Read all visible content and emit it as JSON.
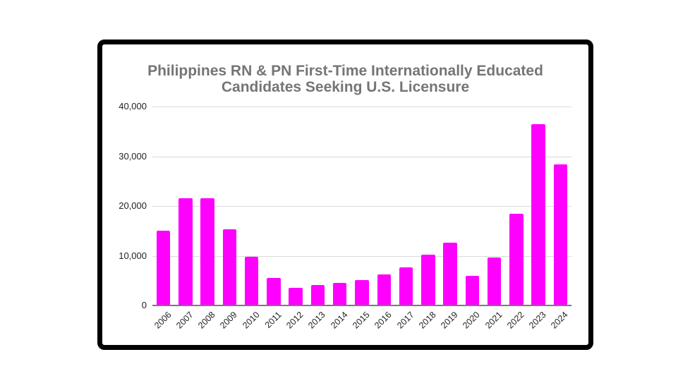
{
  "chart_data": {
    "type": "bar",
    "title": "Philippines RN & PN First-Time Internationally Educated Candidates Seeking U.S. Licensure",
    "title_lines": [
      "Philippines RN & PN First-Time Internationally Educated",
      "Candidates Seeking U.S. Licensure"
    ],
    "xlabel": "",
    "ylabel": "",
    "categories": [
      "2006",
      "2007",
      "2008",
      "2009",
      "2010",
      "2011",
      "2012",
      "2013",
      "2014",
      "2015",
      "2016",
      "2017",
      "2018",
      "2019",
      "2020",
      "2021",
      "2022",
      "2023",
      "2024"
    ],
    "values": [
      15100,
      21500,
      21500,
      15300,
      9750,
      5500,
      3500,
      4050,
      4500,
      5150,
      6300,
      7700,
      10200,
      12600,
      5950,
      9700,
      18500,
      36400,
      28300
    ],
    "ylim": [
      0,
      40000
    ],
    "yticks": [
      0,
      10000,
      20000,
      30000,
      40000
    ],
    "ytick_labels": [
      "0",
      "10,000",
      "20,000",
      "30,000",
      "40,000"
    ],
    "grid": true,
    "legend": null,
    "bar_color": "#ff00ff"
  },
  "colors": {
    "bar": "#ff00ff",
    "title": "#757575",
    "grid": "#d9d9d9",
    "frame": "#000000"
  }
}
